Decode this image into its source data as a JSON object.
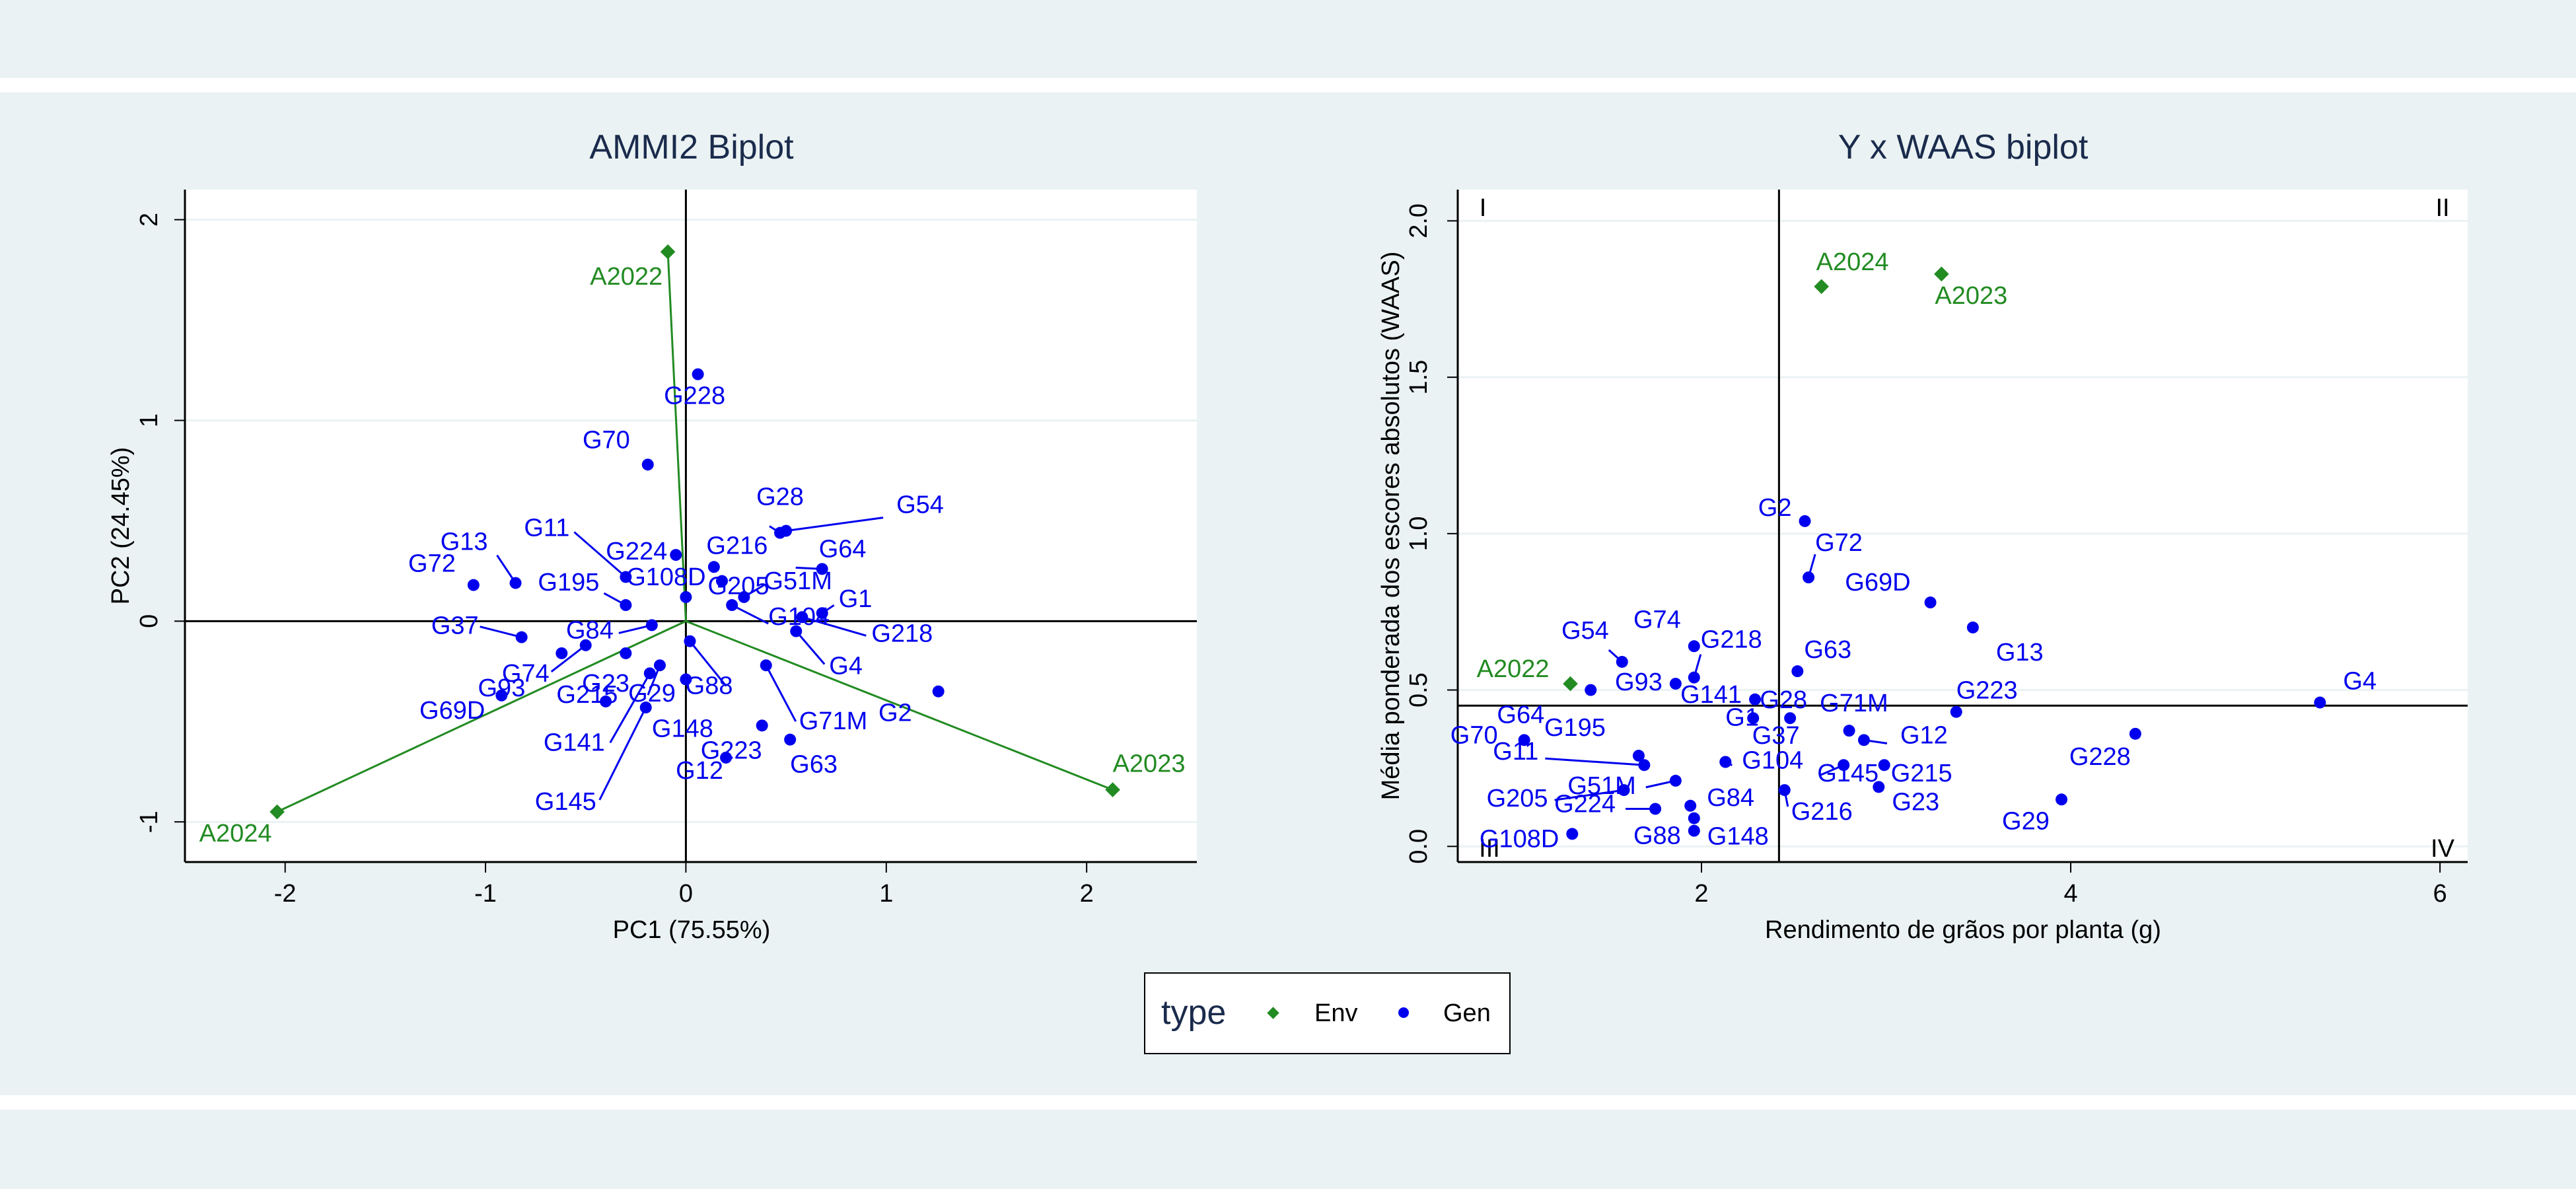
{
  "chart_data": [
    {
      "type": "scatter",
      "title": "AMMI2 Biplot",
      "xlabel": "PC1 (75.55%)",
      "ylabel": "PC2 (24.45%)",
      "xlim": [
        -2.5,
        2.55
      ],
      "ylim": [
        -1.2,
        2.15
      ],
      "xticks": [
        -2,
        -1,
        0,
        1,
        2
      ],
      "yticks": [
        -1,
        0,
        1,
        2
      ],
      "grid": "horizontal",
      "reference_lines": {
        "x": 0,
        "y": 0
      },
      "env_vectors": true,
      "series": [
        {
          "name": "Env",
          "color": "#228b22",
          "marker": "diamond",
          "points": [
            {
              "label": "A2022",
              "x": -0.09,
              "y": 1.84
            },
            {
              "label": "A2023",
              "x": 2.13,
              "y": -0.84
            },
            {
              "label": "A2024",
              "x": -2.04,
              "y": -0.95
            }
          ]
        },
        {
          "name": "Gen",
          "color": "#0000ee",
          "marker": "circle",
          "points": [
            {
              "label": "G228",
              "x": 0.06,
              "y": 1.23
            },
            {
              "label": "G70",
              "x": -0.19,
              "y": 0.78
            },
            {
              "label": "G28",
              "x": 0.47,
              "y": 0.44
            },
            {
              "label": "G64",
              "x": 0.68,
              "y": 0.26
            },
            {
              "label": "G54",
              "x": 0.5,
              "y": 0.45
            },
            {
              "label": "G11",
              "x": -0.3,
              "y": 0.22
            },
            {
              "label": "G224",
              "x": -0.05,
              "y": 0.33
            },
            {
              "label": "G216",
              "x": 0.14,
              "y": 0.27
            },
            {
              "label": "G13",
              "x": -0.85,
              "y": 0.19
            },
            {
              "label": "G72",
              "x": -1.06,
              "y": 0.18
            },
            {
              "label": "G195",
              "x": -0.3,
              "y": 0.08
            },
            {
              "label": "G108D",
              "x": 0.0,
              "y": 0.12
            },
            {
              "label": "G51M",
              "x": 0.29,
              "y": 0.12
            },
            {
              "label": "G1",
              "x": 0.68,
              "y": 0.04
            },
            {
              "label": "G37",
              "x": -0.82,
              "y": -0.08
            },
            {
              "label": "G84",
              "x": -0.17,
              "y": -0.02
            },
            {
              "label": "G205",
              "x": 0.18,
              "y": 0.2
            },
            {
              "label": "G104",
              "x": 0.23,
              "y": 0.08
            },
            {
              "label": "G218",
              "x": 0.58,
              "y": 0.02
            },
            {
              "label": "G4",
              "x": 0.55,
              "y": -0.05
            },
            {
              "label": "G74",
              "x": -0.5,
              "y": -0.12
            },
            {
              "label": "G93",
              "x": -0.62,
              "y": -0.16
            },
            {
              "label": "G215",
              "x": -0.3,
              "y": -0.16
            },
            {
              "label": "G29",
              "x": -0.13,
              "y": -0.22
            },
            {
              "label": "G88",
              "x": 0.02,
              "y": -0.1
            },
            {
              "label": "G71M",
              "x": 0.4,
              "y": -0.22
            },
            {
              "label": "G2",
              "x": 1.26,
              "y": -0.35
            },
            {
              "label": "G69D",
              "x": -0.92,
              "y": -0.37
            },
            {
              "label": "G23",
              "x": -0.4,
              "y": -0.4
            },
            {
              "label": "G141",
              "x": -0.18,
              "y": -0.26
            },
            {
              "label": "G148",
              "x": 0.0,
              "y": -0.29
            },
            {
              "label": "G145",
              "x": -0.2,
              "y": -0.43
            },
            {
              "label": "G223",
              "x": 0.38,
              "y": -0.52
            },
            {
              "label": "G63",
              "x": 0.52,
              "y": -0.59
            },
            {
              "label": "G12",
              "x": 0.2,
              "y": -0.68
            }
          ]
        }
      ]
    },
    {
      "type": "scatter",
      "title": "Y x WAAS biplot",
      "xlabel": "Rendimento de grãos por planta (g)",
      "ylabel": "Média ponderada dos escores absolutos (WAAS)",
      "xlim": [
        0.68,
        6.15
      ],
      "ylim": [
        -0.05,
        2.1
      ],
      "xticks": [
        2,
        4,
        6
      ],
      "yticks": [
        "0.0",
        "0.5",
        "1.0",
        "1.5",
        "2.0"
      ],
      "grid": "horizontal",
      "reference_lines": {
        "x": 2.42,
        "y": 0.45
      },
      "quadrant_labels": [
        "I",
        "II",
        "III",
        "IV"
      ],
      "series": [
        {
          "name": "Env",
          "color": "#228b22",
          "marker": "diamond",
          "points": [
            {
              "label": "A2024",
              "x": 2.65,
              "y": 1.79
            },
            {
              "label": "A2023",
              "x": 3.3,
              "y": 1.83
            },
            {
              "label": "A2022",
              "x": 1.29,
              "y": 0.52
            }
          ]
        },
        {
          "name": "Gen",
          "color": "#0000ee",
          "marker": "circle",
          "points": [
            {
              "label": "G2",
              "x": 2.56,
              "y": 1.04
            },
            {
              "label": "G72",
              "x": 2.58,
              "y": 0.86
            },
            {
              "label": "G69D",
              "x": 3.24,
              "y": 0.78
            },
            {
              "label": "G13",
              "x": 3.47,
              "y": 0.7
            },
            {
              "label": "G4",
              "x": 5.35,
              "y": 0.46
            },
            {
              "label": "G54",
              "x": 1.57,
              "y": 0.59
            },
            {
              "label": "G74",
              "x": 1.96,
              "y": 0.64
            },
            {
              "label": "G218",
              "x": 1.96,
              "y": 0.54
            },
            {
              "label": "G64",
              "x": 1.4,
              "y": 0.5
            },
            {
              "label": "G93",
              "x": 1.86,
              "y": 0.52
            },
            {
              "label": "G141",
              "x": 2.29,
              "y": 0.47
            },
            {
              "label": "G28",
              "x": 2.28,
              "y": 0.41
            },
            {
              "label": "G63",
              "x": 2.52,
              "y": 0.56
            },
            {
              "label": "G71M",
              "x": 2.48,
              "y": 0.41
            },
            {
              "label": "G223",
              "x": 3.38,
              "y": 0.43
            },
            {
              "label": "G228",
              "x": 4.35,
              "y": 0.36
            },
            {
              "label": "G29",
              "x": 3.95,
              "y": 0.15
            },
            {
              "label": "G70",
              "x": 1.04,
              "y": 0.34
            },
            {
              "label": "G195",
              "x": 1.66,
              "y": 0.29
            },
            {
              "label": "G1",
              "x": 2.13,
              "y": 0.27
            },
            {
              "label": "G37",
              "x": 2.8,
              "y": 0.37
            },
            {
              "label": "G12",
              "x": 2.88,
              "y": 0.34
            },
            {
              "label": "G11",
              "x": 1.69,
              "y": 0.26
            },
            {
              "label": "G51M",
              "x": 1.86,
              "y": 0.21
            },
            {
              "label": "G104",
              "x": 2.13,
              "y": 0.27
            },
            {
              "label": "G145",
              "x": 2.77,
              "y": 0.26
            },
            {
              "label": "G215",
              "x": 2.99,
              "y": 0.26
            },
            {
              "label": "G205",
              "x": 1.58,
              "y": 0.18
            },
            {
              "label": "G224",
              "x": 1.75,
              "y": 0.12
            },
            {
              "label": "G84",
              "x": 1.94,
              "y": 0.13
            },
            {
              "label": "G216",
              "x": 2.45,
              "y": 0.18
            },
            {
              "label": "G23",
              "x": 2.96,
              "y": 0.19
            },
            {
              "label": "G108D",
              "x": 1.3,
              "y": 0.04
            },
            {
              "label": "G88",
              "x": 1.96,
              "y": 0.05
            },
            {
              "label": "G148",
              "x": 1.96,
              "y": 0.09
            }
          ]
        }
      ]
    }
  ],
  "legend": {
    "title": "type",
    "placement": "bottom-center",
    "items": [
      {
        "label": "Env",
        "color": "#228b22",
        "marker": "diamond"
      },
      {
        "label": "Gen",
        "color": "#0000ee",
        "marker": "circle"
      }
    ]
  }
}
